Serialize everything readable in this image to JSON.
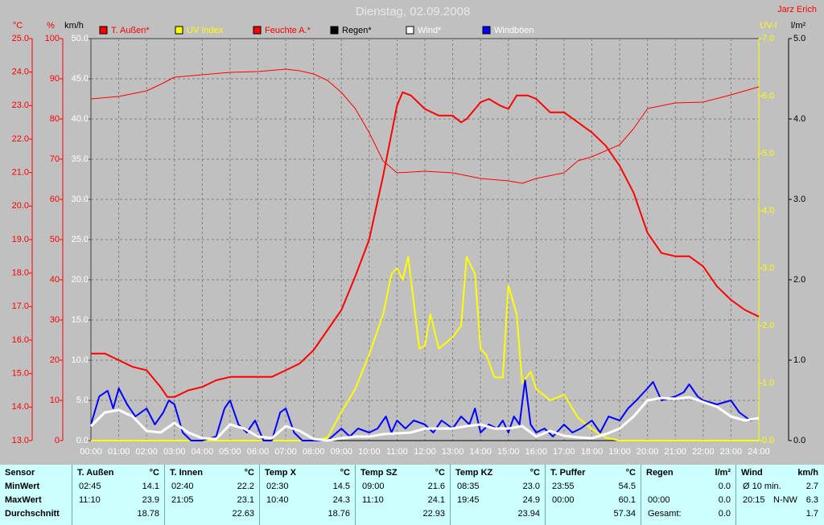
{
  "chart_data": {
    "type": "line",
    "title": "Dienstag, 02.09.2008",
    "author": "Jarz Erich",
    "xlim": [
      0,
      24
    ],
    "xticks": [
      {
        "value": 0,
        "label": "00:00"
      },
      {
        "value": 1,
        "label": "01:00"
      },
      {
        "value": 2,
        "label": "02:00"
      },
      {
        "value": 3,
        "label": "03:00"
      },
      {
        "value": 4,
        "label": "04:00"
      },
      {
        "value": 5,
        "label": "05:00"
      },
      {
        "value": 6,
        "label": "06:00"
      },
      {
        "value": 7,
        "label": "07:00"
      },
      {
        "value": 8,
        "label": "08:00"
      },
      {
        "value": 9,
        "label": "09:00"
      },
      {
        "value": 10,
        "label": "10:00"
      },
      {
        "value": 11,
        "label": "11:00"
      },
      {
        "value": 12,
        "label": "12:00"
      },
      {
        "value": 13,
        "label": "13:00"
      },
      {
        "value": 14,
        "label": "14:00"
      },
      {
        "value": 15,
        "label": "15:00"
      },
      {
        "value": 16,
        "label": "16:00"
      },
      {
        "value": 17,
        "label": "17:00"
      },
      {
        "value": 18,
        "label": "18:00"
      },
      {
        "value": 19,
        "label": "19:00"
      },
      {
        "value": 20,
        "label": "20:00"
      },
      {
        "value": 21,
        "label": "21:00"
      },
      {
        "value": 22,
        "label": "22:00"
      },
      {
        "value": 23,
        "label": "23:00"
      },
      {
        "value": 24,
        "label": "24:00"
      }
    ],
    "axes": [
      {
        "label": "°C",
        "color": "#ff0000",
        "lim": [
          13,
          25
        ],
        "ticks": [
          {
            "value": 13,
            "label": "13.0"
          },
          {
            "value": 14,
            "label": "14.0"
          },
          {
            "value": 15,
            "label": "15.0"
          },
          {
            "value": 16,
            "label": "16.0"
          },
          {
            "value": 17,
            "label": "17.0"
          },
          {
            "value": 18,
            "label": "18.0"
          },
          {
            "value": 19,
            "label": "19.0"
          },
          {
            "value": 20,
            "label": "20.0"
          },
          {
            "value": 21,
            "label": "21.0"
          },
          {
            "value": 22,
            "label": "22.0"
          },
          {
            "value": 23,
            "label": "23.0"
          },
          {
            "value": 24,
            "label": "24.0"
          },
          {
            "value": 25,
            "label": "25.0"
          }
        ]
      },
      {
        "label": "%",
        "color": "#ff0000",
        "lim": [
          0,
          100
        ],
        "ticks": [
          0,
          10,
          20,
          30,
          40,
          50,
          60,
          70,
          80,
          90,
          100
        ]
      },
      {
        "label": "km/h",
        "color": "#ffffff",
        "lim": [
          0,
          50
        ],
        "grid": true,
        "ticks": [
          {
            "value": 0,
            "label": "0.0"
          },
          {
            "value": 5,
            "label": "5.0"
          },
          {
            "value": 10,
            "label": "10.0"
          },
          {
            "value": 15,
            "label": "15.0"
          },
          {
            "value": 20,
            "label": "20.0"
          },
          {
            "value": 25,
            "label": "25.0"
          },
          {
            "value": 30,
            "label": "30.0"
          },
          {
            "value": 35,
            "label": "35.0"
          },
          {
            "value": 40,
            "label": "40.0"
          },
          {
            "value": 45,
            "label": "45.0"
          },
          {
            "value": 50,
            "label": "50.0"
          }
        ]
      },
      {
        "label": "UV-I",
        "color": "#ffff00",
        "lim": [
          0,
          7
        ],
        "ticks": [
          {
            "value": 0,
            "label": "0.0"
          },
          {
            "value": 1,
            "label": "1.0"
          },
          {
            "value": 2,
            "label": "2.0"
          },
          {
            "value": 3,
            "label": "3.0"
          },
          {
            "value": 4,
            "label": "4.0"
          },
          {
            "value": 5,
            "label": "5.0"
          },
          {
            "value": 6,
            "label": "6.0"
          },
          {
            "value": 7,
            "label": "7.0"
          }
        ]
      },
      {
        "label": "l/m²",
        "color": "#000000",
        "lim": [
          0,
          5
        ],
        "ticks": [
          {
            "value": 0,
            "label": "0.0"
          },
          {
            "value": 1,
            "label": "1.0"
          },
          {
            "value": 2,
            "label": "2.0"
          },
          {
            "value": 3,
            "label": "3.0"
          },
          {
            "value": 4,
            "label": "4.0"
          },
          {
            "value": 5,
            "label": "5.0"
          }
        ]
      }
    ],
    "series": [
      {
        "name": "T. Außen*",
        "color": "#ff0000",
        "axis": 0,
        "width": 2,
        "x": [
          0,
          0.5,
          1,
          1.5,
          2,
          2.5,
          2.75,
          3,
          3.5,
          4,
          4.5,
          5,
          5.5,
          6,
          6.5,
          7,
          7.5,
          8,
          8.5,
          9,
          9.5,
          10,
          10.5,
          11,
          11.2,
          11.5,
          12,
          12.5,
          13,
          13.3,
          13.5,
          14,
          14.3,
          14.7,
          15,
          15.3,
          15.7,
          16,
          16.5,
          17,
          17.5,
          18,
          18.5,
          19,
          19.5,
          20,
          20.5,
          21,
          21.5,
          22,
          22.5,
          23,
          23.5,
          24
        ],
        "values": [
          15.6,
          15.6,
          15.4,
          15.2,
          15.1,
          14.6,
          14.3,
          14.3,
          14.5,
          14.6,
          14.8,
          14.9,
          14.9,
          14.9,
          14.9,
          15.1,
          15.3,
          15.7,
          16.3,
          16.9,
          17.9,
          19.0,
          20.9,
          23.0,
          23.4,
          23.3,
          22.9,
          22.7,
          22.7,
          22.5,
          22.6,
          23.1,
          23.2,
          23.0,
          22.9,
          23.3,
          23.3,
          23.2,
          22.8,
          22.8,
          22.5,
          22.2,
          21.8,
          21.2,
          20.4,
          19.2,
          18.6,
          18.5,
          18.5,
          18.2,
          17.6,
          17.2,
          16.9,
          16.7
        ]
      },
      {
        "name": "UV Index",
        "color": "#ffff00",
        "axis": 3,
        "width": 2,
        "x": [
          0,
          8,
          8.5,
          9,
          9.5,
          10,
          10.5,
          10.8,
          11,
          11.2,
          11.4,
          11.6,
          11.8,
          12,
          12.2,
          12.5,
          13,
          13.3,
          13.5,
          13.8,
          14,
          14.2,
          14.5,
          14.8,
          15,
          15.3,
          15.5,
          15.8,
          16,
          16.5,
          17,
          17.5,
          18,
          18.5,
          19,
          24
        ],
        "values": [
          0,
          0,
          0.05,
          0.5,
          0.9,
          1.5,
          2.2,
          2.9,
          3.0,
          2.8,
          3.2,
          2.4,
          1.6,
          1.65,
          2.2,
          1.6,
          1.8,
          2.0,
          3.2,
          2.9,
          1.6,
          1.5,
          1.1,
          1.1,
          2.7,
          2.2,
          1.0,
          1.2,
          0.9,
          0.7,
          0.8,
          0.4,
          0.2,
          0.05,
          0,
          0
        ]
      },
      {
        "name": "Feuchte A.*",
        "color": "#ff0000",
        "axis": 1,
        "width": 1,
        "x": [
          0,
          1,
          2,
          2.5,
          3,
          4,
          5,
          6,
          7,
          7.5,
          8,
          8.5,
          9,
          9.5,
          10,
          10.5,
          11,
          12,
          13,
          14,
          15,
          15.5,
          16,
          17,
          17.5,
          18,
          19,
          19.5,
          20,
          21,
          22,
          23,
          24
        ],
        "values": [
          85,
          85.6,
          87,
          88.6,
          90.4,
          91,
          91.6,
          91.8,
          92.4,
          92,
          91.2,
          89.6,
          86.6,
          82.6,
          76.6,
          69.6,
          66.6,
          67,
          66.6,
          65.2,
          64.6,
          64,
          65.2,
          66.6,
          69.6,
          70.6,
          73.6,
          77.6,
          82.6,
          84,
          84.2,
          86,
          88
        ]
      },
      {
        "name": "Regen*",
        "color": "#000000",
        "axis": 4,
        "width": 1,
        "x": [
          0,
          24
        ],
        "values": [
          0,
          0
        ]
      },
      {
        "name": "Wind*",
        "color": "#ffffff",
        "axis": 2,
        "width": 3,
        "x": [
          0,
          0.5,
          1,
          1.5,
          2,
          2.5,
          3,
          3.5,
          4,
          4.5,
          5,
          5.5,
          6,
          6.5,
          7,
          7.5,
          8,
          8.5,
          9,
          9.5,
          10,
          10.5,
          11,
          11.5,
          12,
          13,
          13.5,
          14,
          14.5,
          15,
          15.5,
          16,
          16.5,
          17,
          17.5,
          18,
          18.5,
          19,
          19.5,
          20,
          20.5,
          21,
          21.5,
          22,
          22.5,
          23,
          23.5,
          24
        ],
        "values": [
          1.8,
          3.5,
          3.8,
          3.0,
          1.2,
          1.0,
          2.2,
          1.0,
          0.3,
          0.2,
          2.0,
          1.5,
          0.5,
          0.3,
          1.8,
          1.2,
          0.2,
          0,
          0.3,
          0.5,
          0.5,
          0.8,
          0.9,
          1.0,
          1.5,
          1.5,
          1.8,
          2.0,
          1.5,
          1.5,
          1.8,
          0.5,
          1.2,
          0.6,
          0.4,
          0.3,
          0.8,
          1.5,
          3.0,
          5.0,
          5.3,
          5.2,
          5.4,
          4.8,
          4.2,
          3.0,
          2.5,
          2.8
        ]
      },
      {
        "name": "Windböen",
        "color": "#0000ff",
        "axis": 2,
        "width": 2,
        "x": [
          0,
          0.3,
          0.6,
          0.8,
          1,
          1.3,
          1.6,
          2,
          2.3,
          2.6,
          2.8,
          3,
          3.3,
          3.6,
          4,
          4.5,
          4.8,
          5,
          5.3,
          5.6,
          5.9,
          6.2,
          6.5,
          6.8,
          7,
          7.3,
          7.6,
          8,
          8.5,
          9,
          9.3,
          9.6,
          10,
          10.3,
          10.6,
          10.8,
          11,
          11.3,
          11.6,
          12,
          12.3,
          12.6,
          13,
          13.3,
          13.6,
          13.8,
          14,
          14.3,
          14.6,
          14.8,
          15,
          15.2,
          15.4,
          15.6,
          15.8,
          16,
          16.3,
          16.6,
          17,
          17.3,
          17.6,
          18,
          18.3,
          18.6,
          19,
          19.3,
          19.6,
          20,
          20.2,
          20.5,
          21,
          21.3,
          21.5,
          21.8,
          22,
          22.5,
          23,
          23.3,
          23.5,
          23.7,
          24
        ],
        "values": [
          2,
          5.5,
          6.2,
          4,
          6.5,
          4.5,
          3,
          4,
          2,
          3.5,
          5,
          4.5,
          1,
          0,
          0,
          0.5,
          4,
          5,
          2,
          1,
          2.5,
          0,
          0,
          3.5,
          4,
          1,
          0,
          0,
          0,
          1.5,
          0.5,
          1.5,
          1,
          1.5,
          3,
          1,
          2.5,
          1.5,
          2.5,
          2,
          1,
          2.5,
          1.5,
          3,
          2,
          4,
          1,
          2,
          1.5,
          2.5,
          1,
          3,
          2,
          7.5,
          2,
          1,
          1.5,
          0.5,
          2,
          1,
          1.5,
          2.5,
          1,
          3,
          2.5,
          4,
          5,
          6.5,
          7.3,
          5,
          5.5,
          6,
          7,
          5.5,
          5,
          4.5,
          5,
          3.5,
          3,
          2.5,
          2.8
        ]
      }
    ]
  },
  "table": {
    "columns": [
      {
        "name": "Sensor"
      },
      {
        "name": "T. Außen",
        "unit": "°C"
      },
      {
        "name": "T. Innen",
        "unit": "°C"
      },
      {
        "name": "Temp X",
        "unit": "°C"
      },
      {
        "name": "Temp SZ",
        "unit": "°C"
      },
      {
        "name": "Temp KZ",
        "unit": "°C"
      },
      {
        "name": "T. Puffer",
        "unit": "°C"
      },
      {
        "name": "Regen",
        "unit": "l/m²"
      },
      {
        "name": "Wind",
        "unit": "km/h"
      }
    ],
    "rows": [
      {
        "label": "MinWert",
        "cells": [
          [
            "02:45",
            "14.1"
          ],
          [
            "02:40",
            "22.2"
          ],
          [
            "02:30",
            "14.5"
          ],
          [
            "09:00",
            "21.6"
          ],
          [
            "08:35",
            "23.0"
          ],
          [
            "23:55",
            "54.5"
          ],
          [
            "0.0"
          ],
          [
            "Ø 10 min.",
            "2.7"
          ]
        ]
      },
      {
        "label": "MaxWert",
        "cells": [
          [
            "11:10",
            "23.9"
          ],
          [
            "21:05",
            "23.1"
          ],
          [
            "10:40",
            "24.3"
          ],
          [
            "11:10",
            "24.1"
          ],
          [
            "19:45",
            "24.9"
          ],
          [
            "00:00",
            "60.1"
          ],
          [
            "00:00",
            "0.0"
          ],
          [
            "20:15",
            "N-NW",
            "6.3"
          ]
        ]
      },
      {
        "label": "Durchschnitt",
        "cells": [
          [
            "18.78"
          ],
          [
            "22.63"
          ],
          [
            "18.76"
          ],
          [
            "22.93"
          ],
          [
            "23.94"
          ],
          [
            "57.34"
          ],
          [
            "Gesamt:",
            "0.0"
          ],
          [
            "1.7"
          ]
        ]
      }
    ]
  }
}
